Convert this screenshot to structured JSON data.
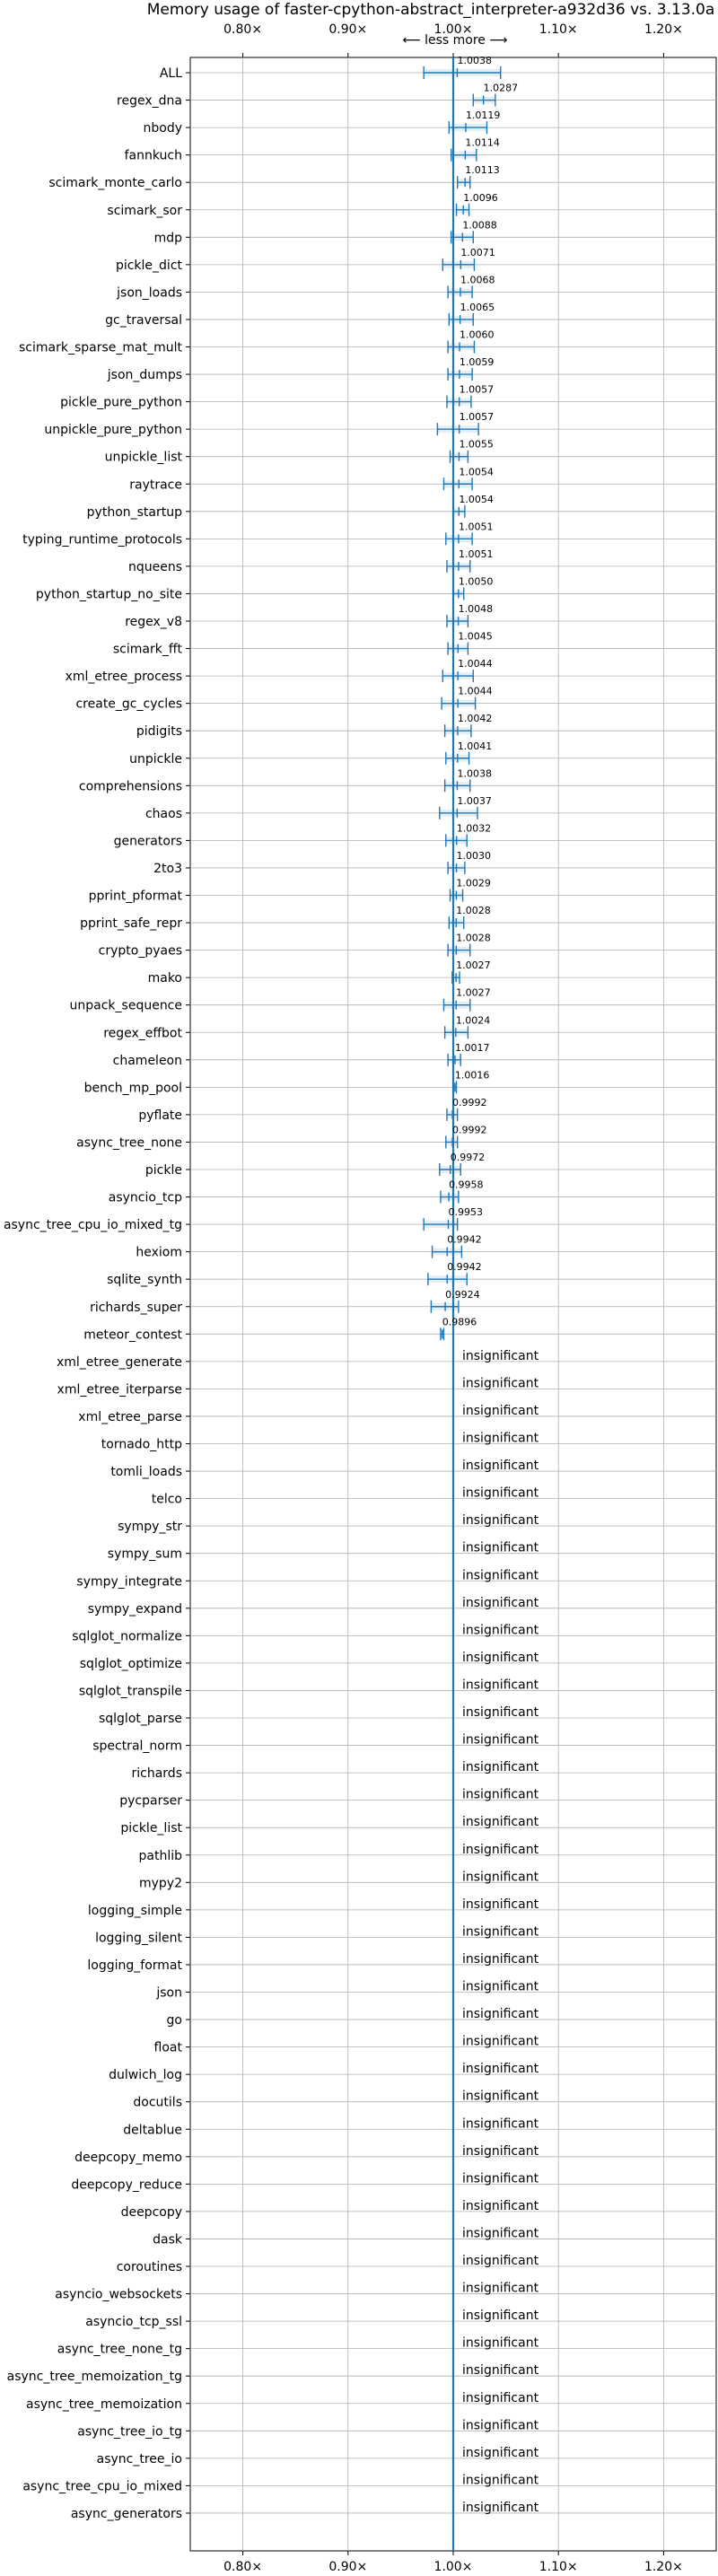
{
  "chart_data": {
    "type": "scatter",
    "title": "Memory usage of faster-cpython-abstract_interpreter-a932d36 vs. 3.13.0a",
    "direction_label": "⟵ less    more ⟶",
    "xlim": [
      0.75,
      1.25
    ],
    "xticks": [
      0.8,
      0.9,
      1.0,
      1.1,
      1.2
    ],
    "xtick_labels": [
      "0.80×",
      "0.90×",
      "1.00×",
      "1.10×",
      "1.20×"
    ],
    "reference_x": 1.0,
    "grid": true,
    "color": "#1f77b4",
    "insignificant_label": "insignificant",
    "benchmarks": [
      {
        "name": "ALL",
        "value": 1.0038,
        "label": "1.0038",
        "low": 0.972,
        "high": 1.045
      },
      {
        "name": "regex_dna",
        "value": 1.0287,
        "label": "1.0287",
        "low": 1.019,
        "high": 1.04
      },
      {
        "name": "nbody",
        "value": 1.0119,
        "label": "1.0119",
        "low": 0.996,
        "high": 1.032
      },
      {
        "name": "fannkuch",
        "value": 1.0114,
        "label": "1.0114",
        "low": 0.998,
        "high": 1.022
      },
      {
        "name": "scimark_monte_carlo",
        "value": 1.0113,
        "label": "1.0113",
        "low": 1.004,
        "high": 1.016
      },
      {
        "name": "scimark_sor",
        "value": 1.0096,
        "label": "1.0096",
        "low": 1.003,
        "high": 1.015
      },
      {
        "name": "mdp",
        "value": 1.0088,
        "label": "1.0088",
        "low": 0.998,
        "high": 1.019
      },
      {
        "name": "pickle_dict",
        "value": 1.0071,
        "label": "1.0071",
        "low": 0.99,
        "high": 1.02
      },
      {
        "name": "json_loads",
        "value": 1.0068,
        "label": "1.0068",
        "low": 0.995,
        "high": 1.018
      },
      {
        "name": "gc_traversal",
        "value": 1.0065,
        "label": "1.0065",
        "low": 0.996,
        "high": 1.019
      },
      {
        "name": "scimark_sparse_mat_mult",
        "value": 1.006,
        "label": "1.0060",
        "low": 0.995,
        "high": 1.02
      },
      {
        "name": "json_dumps",
        "value": 1.0059,
        "label": "1.0059",
        "low": 0.995,
        "high": 1.018
      },
      {
        "name": "pickle_pure_python",
        "value": 1.0057,
        "label": "1.0057",
        "low": 0.994,
        "high": 1.017
      },
      {
        "name": "unpickle_pure_python",
        "value": 1.0057,
        "label": "1.0057",
        "low": 0.985,
        "high": 1.024
      },
      {
        "name": "unpickle_list",
        "value": 1.0055,
        "label": "1.0055",
        "low": 0.997,
        "high": 1.014
      },
      {
        "name": "raytrace",
        "value": 1.0054,
        "label": "1.0054",
        "low": 0.991,
        "high": 1.018
      },
      {
        "name": "python_startup",
        "value": 1.0054,
        "label": "1.0054",
        "low": 1.0,
        "high": 1.011
      },
      {
        "name": "typing_runtime_protocols",
        "value": 1.0051,
        "label": "1.0051",
        "low": 0.993,
        "high": 1.018
      },
      {
        "name": "nqueens",
        "value": 1.0051,
        "label": "1.0051",
        "low": 0.994,
        "high": 1.016
      },
      {
        "name": "python_startup_no_site",
        "value": 1.005,
        "label": "1.0050",
        "low": 1.0,
        "high": 1.01
      },
      {
        "name": "regex_v8",
        "value": 1.0048,
        "label": "1.0048",
        "low": 0.994,
        "high": 1.014
      },
      {
        "name": "scimark_fft",
        "value": 1.0045,
        "label": "1.0045",
        "low": 0.995,
        "high": 1.014
      },
      {
        "name": "xml_etree_process",
        "value": 1.0044,
        "label": "1.0044",
        "low": 0.99,
        "high": 1.019
      },
      {
        "name": "create_gc_cycles",
        "value": 1.0044,
        "label": "1.0044",
        "low": 0.989,
        "high": 1.021
      },
      {
        "name": "pidigits",
        "value": 1.0042,
        "label": "1.0042",
        "low": 0.992,
        "high": 1.017
      },
      {
        "name": "unpickle",
        "value": 1.0041,
        "label": "1.0041",
        "low": 0.993,
        "high": 1.015
      },
      {
        "name": "comprehensions",
        "value": 1.0038,
        "label": "1.0038",
        "low": 0.992,
        "high": 1.016
      },
      {
        "name": "chaos",
        "value": 1.0037,
        "label": "1.0037",
        "low": 0.987,
        "high": 1.023
      },
      {
        "name": "generators",
        "value": 1.0032,
        "label": "1.0032",
        "low": 0.993,
        "high": 1.013
      },
      {
        "name": "2to3",
        "value": 1.003,
        "label": "1.0030",
        "low": 0.995,
        "high": 1.011
      },
      {
        "name": "pprint_pformat",
        "value": 1.0029,
        "label": "1.0029",
        "low": 0.997,
        "high": 1.009
      },
      {
        "name": "pprint_safe_repr",
        "value": 1.0028,
        "label": "1.0028",
        "low": 0.996,
        "high": 1.01
      },
      {
        "name": "crypto_pyaes",
        "value": 1.0028,
        "label": "1.0028",
        "low": 0.995,
        "high": 1.016
      },
      {
        "name": "mako",
        "value": 1.0027,
        "label": "1.0027",
        "low": 0.999,
        "high": 1.006
      },
      {
        "name": "unpack_sequence",
        "value": 1.0027,
        "label": "1.0027",
        "low": 0.991,
        "high": 1.016
      },
      {
        "name": "regex_effbot",
        "value": 1.0024,
        "label": "1.0024",
        "low": 0.992,
        "high": 1.014
      },
      {
        "name": "chameleon",
        "value": 1.0017,
        "label": "1.0017",
        "low": 0.995,
        "high": 1.007
      },
      {
        "name": "bench_mp_pool",
        "value": 1.0016,
        "label": "1.0016",
        "low": 1.0,
        "high": 1.003
      },
      {
        "name": "pyflate",
        "value": 0.9992,
        "label": "0.9992",
        "low": 0.994,
        "high": 1.004
      },
      {
        "name": "async_tree_none",
        "value": 0.9992,
        "label": "0.9992",
        "low": 0.993,
        "high": 1.004
      },
      {
        "name": "pickle",
        "value": 0.9972,
        "label": "0.9972",
        "low": 0.987,
        "high": 1.007
      },
      {
        "name": "asyncio_tcp",
        "value": 0.9958,
        "label": "0.9958",
        "low": 0.988,
        "high": 1.005
      },
      {
        "name": "async_tree_cpu_io_mixed_tg",
        "value": 0.9953,
        "label": "0.9953",
        "low": 0.972,
        "high": 1.004
      },
      {
        "name": "hexiom",
        "value": 0.9942,
        "label": "0.9942",
        "low": 0.98,
        "high": 1.008
      },
      {
        "name": "sqlite_synth",
        "value": 0.9942,
        "label": "0.9942",
        "low": 0.976,
        "high": 1.013
      },
      {
        "name": "richards_super",
        "value": 0.9924,
        "label": "0.9924",
        "low": 0.979,
        "high": 1.005
      },
      {
        "name": "meteor_contest",
        "value": 0.9896,
        "label": "0.9896",
        "low": 0.988,
        "high": 0.991
      },
      {
        "name": "xml_etree_generate",
        "value": null
      },
      {
        "name": "xml_etree_iterparse",
        "value": null
      },
      {
        "name": "xml_etree_parse",
        "value": null
      },
      {
        "name": "tornado_http",
        "value": null
      },
      {
        "name": "tomli_loads",
        "value": null
      },
      {
        "name": "telco",
        "value": null
      },
      {
        "name": "sympy_str",
        "value": null
      },
      {
        "name": "sympy_sum",
        "value": null
      },
      {
        "name": "sympy_integrate",
        "value": null
      },
      {
        "name": "sympy_expand",
        "value": null
      },
      {
        "name": "sqlglot_normalize",
        "value": null
      },
      {
        "name": "sqlglot_optimize",
        "value": null
      },
      {
        "name": "sqlglot_transpile",
        "value": null
      },
      {
        "name": "sqlglot_parse",
        "value": null
      },
      {
        "name": "spectral_norm",
        "value": null
      },
      {
        "name": "richards",
        "value": null
      },
      {
        "name": "pycparser",
        "value": null
      },
      {
        "name": "pickle_list",
        "value": null
      },
      {
        "name": "pathlib",
        "value": null
      },
      {
        "name": "mypy2",
        "value": null
      },
      {
        "name": "logging_simple",
        "value": null
      },
      {
        "name": "logging_silent",
        "value": null
      },
      {
        "name": "logging_format",
        "value": null
      },
      {
        "name": "json",
        "value": null
      },
      {
        "name": "go",
        "value": null
      },
      {
        "name": "float",
        "value": null
      },
      {
        "name": "dulwich_log",
        "value": null
      },
      {
        "name": "docutils",
        "value": null
      },
      {
        "name": "deltablue",
        "value": null
      },
      {
        "name": "deepcopy_memo",
        "value": null
      },
      {
        "name": "deepcopy_reduce",
        "value": null
      },
      {
        "name": "deepcopy",
        "value": null
      },
      {
        "name": "dask",
        "value": null
      },
      {
        "name": "coroutines",
        "value": null
      },
      {
        "name": "asyncio_websockets",
        "value": null
      },
      {
        "name": "asyncio_tcp_ssl",
        "value": null
      },
      {
        "name": "async_tree_none_tg",
        "value": null
      },
      {
        "name": "async_tree_memoization_tg",
        "value": null
      },
      {
        "name": "async_tree_memoization",
        "value": null
      },
      {
        "name": "async_tree_io_tg",
        "value": null
      },
      {
        "name": "async_tree_io",
        "value": null
      },
      {
        "name": "async_tree_cpu_io_mixed",
        "value": null
      },
      {
        "name": "async_generators",
        "value": null
      }
    ]
  }
}
